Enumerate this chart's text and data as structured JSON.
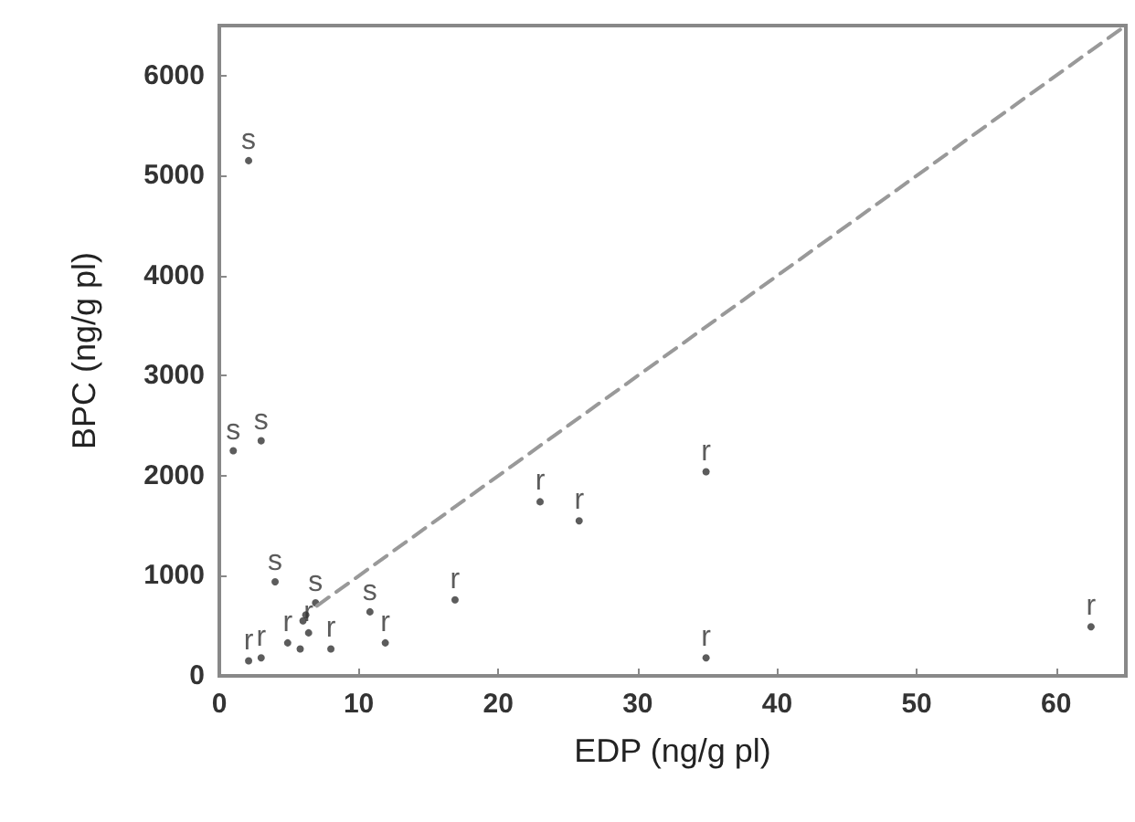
{
  "chart_data": {
    "type": "scatter",
    "xlabel": "EDP (ng/g pl)",
    "ylabel": "BPC (ng/g pl)",
    "xlim": [
      0,
      65
    ],
    "ylim": [
      0,
      6500
    ],
    "xticks": [
      0,
      10,
      20,
      30,
      40,
      50,
      60
    ],
    "yticks": [
      0,
      1000,
      2000,
      3000,
      4000,
      5000,
      6000
    ],
    "grid": false,
    "legend": false,
    "marker": "circle",
    "series": [
      {
        "name": "s",
        "color": "#333333",
        "x": [
          2.1,
          1.0,
          3.0,
          4.0,
          6.9,
          6.2,
          6.0,
          10.8
        ],
        "values": [
          5150,
          2250,
          2350,
          940,
          730,
          610,
          550,
          640
        ]
      },
      {
        "name": "r",
        "color": "#333333",
        "x": [
          23,
          25.8,
          34.9,
          16.9,
          62.5,
          34.9,
          11.9,
          8,
          6.4,
          5.8,
          4.9,
          2.1,
          3
        ],
        "values": [
          1740,
          1550,
          2040,
          760,
          490,
          180,
          330,
          270,
          430,
          270,
          330,
          150,
          180
        ]
      },
      {
        "type": "line",
        "marker": "none",
        "color": "#999999",
        "line_style": "dashed",
        "x": [
          7,
          65
        ],
        "values": [
          700,
          6500
        ]
      }
    ]
  }
}
